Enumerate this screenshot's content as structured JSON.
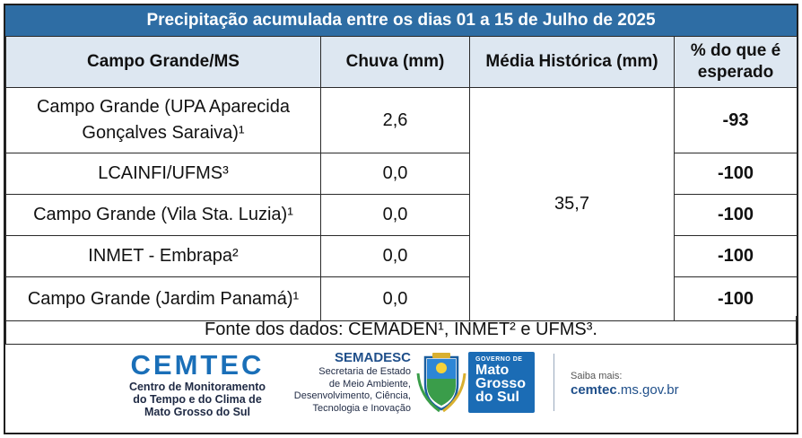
{
  "title": "Precipitação acumulada entre os dias 01 a 15 de Julho de 2025",
  "headers": {
    "station": "Campo Grande/MS",
    "rain": "Chuva (mm)",
    "historical": "Média Histórica (mm)",
    "pct_line1": "% do que é",
    "pct_line2": "esperado"
  },
  "historical_value": "35,7",
  "rows": [
    {
      "station_line1": "Campo Grande (UPA Aparecida",
      "station_line2": "Gonçalves Saraiva)¹",
      "rain": "2,6",
      "pct": "-93"
    },
    {
      "station": "LCAINFI/UFMS³",
      "rain": "0,0",
      "pct": "-100"
    },
    {
      "station": "Campo Grande (Vila Sta. Luzia)¹",
      "rain": "0,0",
      "pct": "-100"
    },
    {
      "station": "INMET - Embrapa²",
      "rain": "0,0",
      "pct": "-100"
    },
    {
      "station": "Campo Grande (Jardim Panamá)¹",
      "rain": "0,0",
      "pct": "-100"
    }
  ],
  "source": "Fonte dos dados:  CEMADEN¹, INMET² e UFMS³.",
  "logos": {
    "cemtec_name": "CEMTEC",
    "cemtec_line1": "Centro de Monitoramento",
    "cemtec_line2": "do Tempo e do Clima de",
    "cemtec_line3": "Mato Grosso do Sul",
    "semadesc_name": "SEMADESC",
    "semadesc_line1": "Secretaria de Estado",
    "semadesc_line2": "de Meio Ambiente,",
    "semadesc_line3": "Desenvolvimento, Ciência,",
    "semadesc_line4": "Tecnologia e Inovação",
    "gov_top": "GOVERNO DE",
    "gov_line1": "Mato",
    "gov_line2": "Grosso",
    "gov_line3": "do Sul",
    "saiba_label": "Saiba mais:",
    "saiba_url_bold": "cemtec",
    "saiba_url_rest": ".ms.gov.br"
  },
  "colors": {
    "title_bg": "#2e6da4",
    "header_bg": "#dde7f1",
    "negative_pct": "#e8202a",
    "cemtec_blue": "#1a6fb8",
    "gov_blue": "#1b6cb5"
  }
}
